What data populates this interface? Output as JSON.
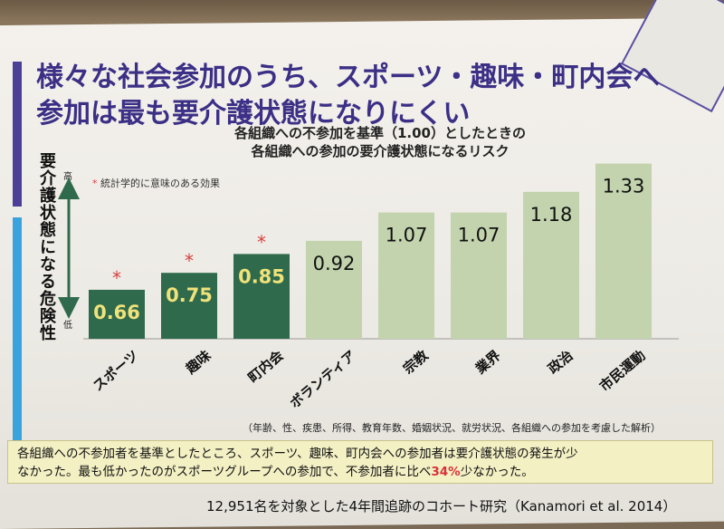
{
  "title": {
    "line1": "様々な社会参加のうち、スポーツ・趣味・町内会へ",
    "line2": "参加は最も要介護状態になりにくい"
  },
  "subtitle": {
    "line1": "各組織への不参加を基準（1.00）としたときの",
    "line2": "各組織への参加の要介護状態になるリスク"
  },
  "y_axis": {
    "label": "要介護状態になる危険性",
    "high": "高",
    "low": "低"
  },
  "significance_note": {
    "star": "*",
    "text": "統計学的に意味のある効果"
  },
  "chart_data": {
    "type": "bar",
    "categories": [
      "スポーツ",
      "趣味",
      "町内会",
      "ボランティア",
      "宗教",
      "業界",
      "政治",
      "市民運動"
    ],
    "values": [
      0.66,
      0.75,
      0.85,
      0.92,
      1.07,
      1.07,
      1.18,
      1.33
    ],
    "value_labels": [
      "0.66",
      "0.75",
      "0.85",
      "0.92",
      "1.07",
      "1.07",
      "1.18",
      "1.33"
    ],
    "significant": [
      true,
      true,
      true,
      false,
      false,
      false,
      false,
      false
    ],
    "ylabel": "要介護状態になる危険性",
    "colors": {
      "significant": "#2f6a4c",
      "other": "#c2d3ad",
      "significant_label": "#f0e27a",
      "other_label": "#111111",
      "star": "#d84040"
    }
  },
  "model_note": "（年齢、性、疾患、所得、教育年数、婚姻状況、就労状況、各組織への参加を考慮した解析）",
  "summary": {
    "line1": "各組織への不参加者を基準としたところ、スポーツ、趣味、町内会への参加者は要介護状態の発生が少",
    "line2_a": "なかった。最も低かったのがスポーツグループへの参加で、不参加者に比べ",
    "highlight": "34%",
    "line2_b": "少なかった。"
  },
  "citation": "12,951名を対象とした4年間追跡のコホート研究（Kanamori et al. 2014）"
}
